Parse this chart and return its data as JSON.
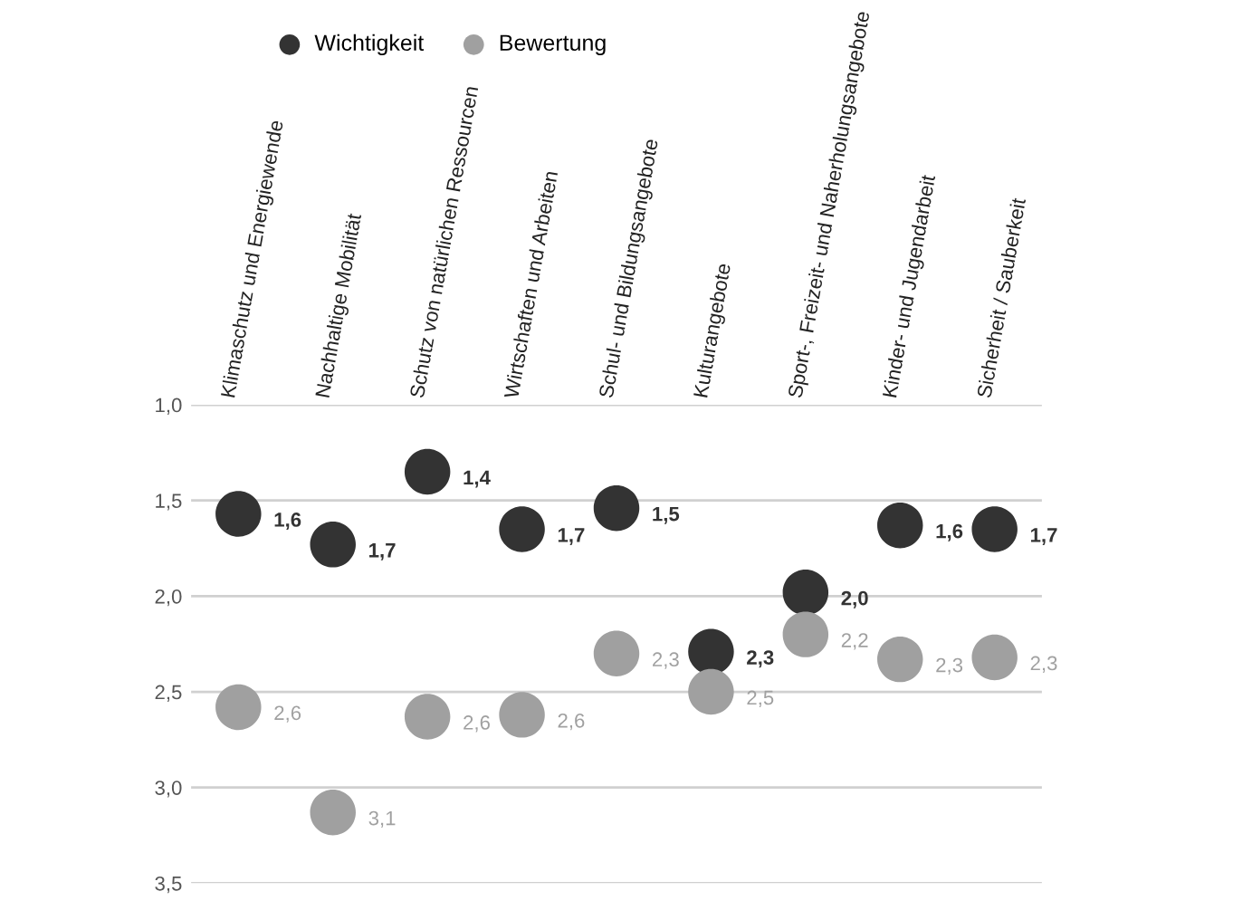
{
  "chart_data": {
    "type": "scatter",
    "categories": [
      "Klimaschutz und Energiewende",
      "Nachhaltige Mobilität",
      "Schutz von natürlichen Ressourcen",
      "Wirtschaften und Arbeiten",
      "Schul- und Bildungsangebote",
      "Kulturangebote",
      "Sport-, Freizeit- und Naherholungsangebote",
      "Kinder- und Jugendarbeit",
      "Sicherheit / Sauberkeit"
    ],
    "series": [
      {
        "name": "Wichtigkeit",
        "color": "#333333",
        "values": [
          1.57,
          1.73,
          1.35,
          1.65,
          1.54,
          2.29,
          1.98,
          1.63,
          1.65
        ],
        "value_labels": [
          "1,6",
          "1,7",
          "1,4",
          "1,7",
          "1,5",
          "2,3",
          "2,0",
          "1,6",
          "1,7"
        ]
      },
      {
        "name": "Bewertung",
        "color": "#a0a0a0",
        "values": [
          2.58,
          3.13,
          2.63,
          2.62,
          2.3,
          2.5,
          2.2,
          2.33,
          2.32
        ],
        "value_labels": [
          "2,6",
          "3,1",
          "2,6",
          "2,6",
          "2,3",
          "2,5",
          "2,2",
          "2,3",
          "2,3"
        ]
      }
    ],
    "ylim": [
      3.5,
      1.0
    ],
    "yticks": [
      {
        "value": 1.0,
        "label": "1,0"
      },
      {
        "value": 1.5,
        "label": "1,5"
      },
      {
        "value": 2.0,
        "label": "2,0"
      },
      {
        "value": 2.5,
        "label": "2,5"
      },
      {
        "value": 3.0,
        "label": "3,0"
      },
      {
        "value": 3.5,
        "label": "3,5"
      }
    ],
    "grid": "y",
    "legend": "top left"
  }
}
